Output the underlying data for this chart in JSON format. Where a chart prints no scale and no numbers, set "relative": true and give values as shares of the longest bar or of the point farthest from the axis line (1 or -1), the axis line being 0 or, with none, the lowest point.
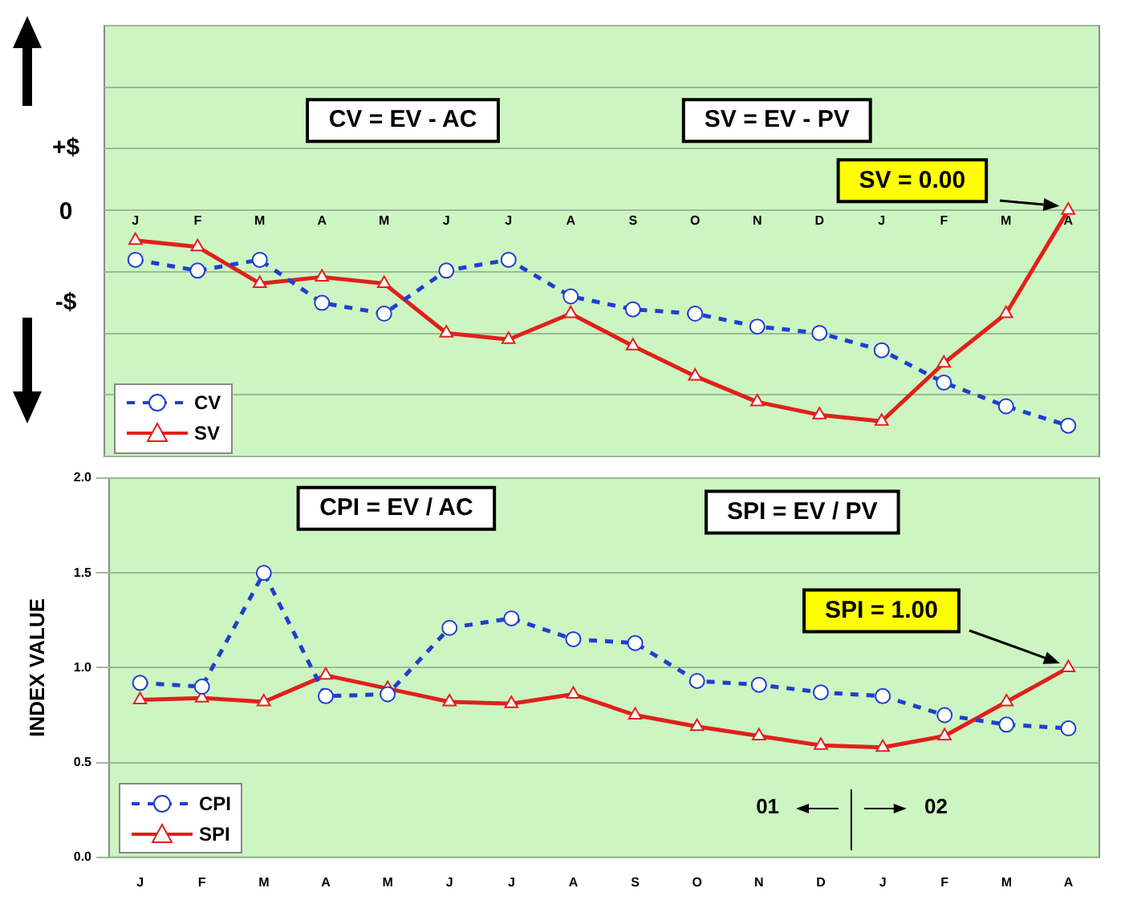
{
  "chart_data": [
    {
      "type": "line",
      "relative": true,
      "categories": [
        "J",
        "F",
        "M",
        "A",
        "M",
        "J",
        "J",
        "A",
        "S",
        "O",
        "N",
        "D",
        "J",
        "F",
        "M",
        "A"
      ],
      "grid": "y",
      "legend": "bottom left",
      "series": [
        {
          "name": "CV",
          "color": "#1f3fd0",
          "line_style": "dashed",
          "marker": "circle",
          "values": [
            -0.23,
            -0.28,
            -0.23,
            -0.43,
            -0.48,
            -0.28,
            -0.23,
            -0.4,
            -0.46,
            -0.48,
            -0.54,
            -0.57,
            -0.65,
            -0.8,
            -0.91,
            -1
          ]
        },
        {
          "name": "SV",
          "color": "#e0201a",
          "line_style": "solid",
          "marker": "triangle",
          "values": [
            -0.14,
            -0.17,
            -0.34,
            -0.31,
            -0.34,
            -0.57,
            -0.6,
            -0.48,
            -0.63,
            -0.77,
            -0.89,
            -0.95,
            -0.98,
            -0.71,
            -0.48,
            0
          ]
        }
      ],
      "annotations": [
        "+$",
        "0",
        "-$",
        "CV = EV - AC",
        "SV = EV - PV",
        "SV = 0.00"
      ]
    },
    {
      "type": "line",
      "categories": [
        "J",
        "F",
        "M",
        "A",
        "M",
        "J",
        "J",
        "A",
        "S",
        "O",
        "N",
        "D",
        "J",
        "F",
        "M",
        "A"
      ],
      "ylabel": "INDEX VALUE",
      "ylim": [
        0,
        2
      ],
      "yticks": [
        {
          "value": 0,
          "label": "0.0"
        },
        {
          "value": 0.5,
          "label": "0.5"
        },
        {
          "value": 1,
          "label": "1.0"
        },
        {
          "value": 1.5,
          "label": "1.5"
        },
        {
          "value": 2,
          "label": "2.0"
        }
      ],
      "grid": "y",
      "legend": "bottom left",
      "series": [
        {
          "name": "CPI",
          "color": "#1f3fd0",
          "line_style": "dashed",
          "marker": "circle",
          "values": [
            0.92,
            0.9,
            1.5,
            0.85,
            0.86,
            1.21,
            1.26,
            1.15,
            1.13,
            0.93,
            0.91,
            0.87,
            0.85,
            0.75,
            0.7,
            0.68
          ]
        },
        {
          "name": "SPI",
          "color": "#e0201a",
          "line_style": "solid",
          "marker": "triangle",
          "values": [
            0.83,
            0.84,
            0.82,
            0.96,
            0.89,
            0.82,
            0.81,
            0.86,
            0.75,
            0.69,
            0.64,
            0.59,
            0.58,
            0.64,
            0.82,
            1.0
          ]
        }
      ],
      "annotations": [
        "CPI = EV / AC",
        "SPI = EV / PV",
        "SPI = 1.00",
        "01",
        "02"
      ]
    }
  ]
}
